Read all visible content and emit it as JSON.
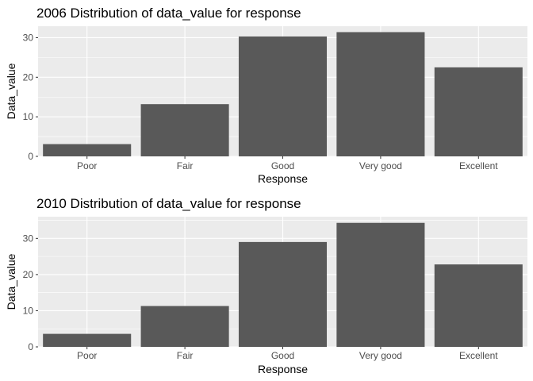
{
  "chart_data": [
    {
      "type": "bar",
      "title": "2006 Distribution of data_value for response",
      "xlabel": "Response",
      "ylabel": "Data_value",
      "categories": [
        "Poor",
        "Fair",
        "Good",
        "Very good",
        "Excellent"
      ],
      "values": [
        3.1,
        13.2,
        30.3,
        31.4,
        22.5
      ],
      "ylim": [
        0,
        32.9
      ],
      "yticks": [
        0,
        10,
        20,
        30
      ],
      "grid": true,
      "bar_color": "#595959",
      "panel_color": "#EBEBEB"
    },
    {
      "type": "bar",
      "title": "2010 Distribution of data_value for response",
      "xlabel": "Response",
      "ylabel": "Data_value",
      "categories": [
        "Poor",
        "Fair",
        "Good",
        "Very good",
        "Excellent"
      ],
      "values": [
        3.6,
        11.3,
        29.0,
        34.3,
        22.8
      ],
      "ylim": [
        0,
        36.0
      ],
      "yticks": [
        0,
        10,
        20,
        30
      ],
      "grid": true,
      "bar_color": "#595959",
      "panel_color": "#EBEBEB"
    }
  ]
}
